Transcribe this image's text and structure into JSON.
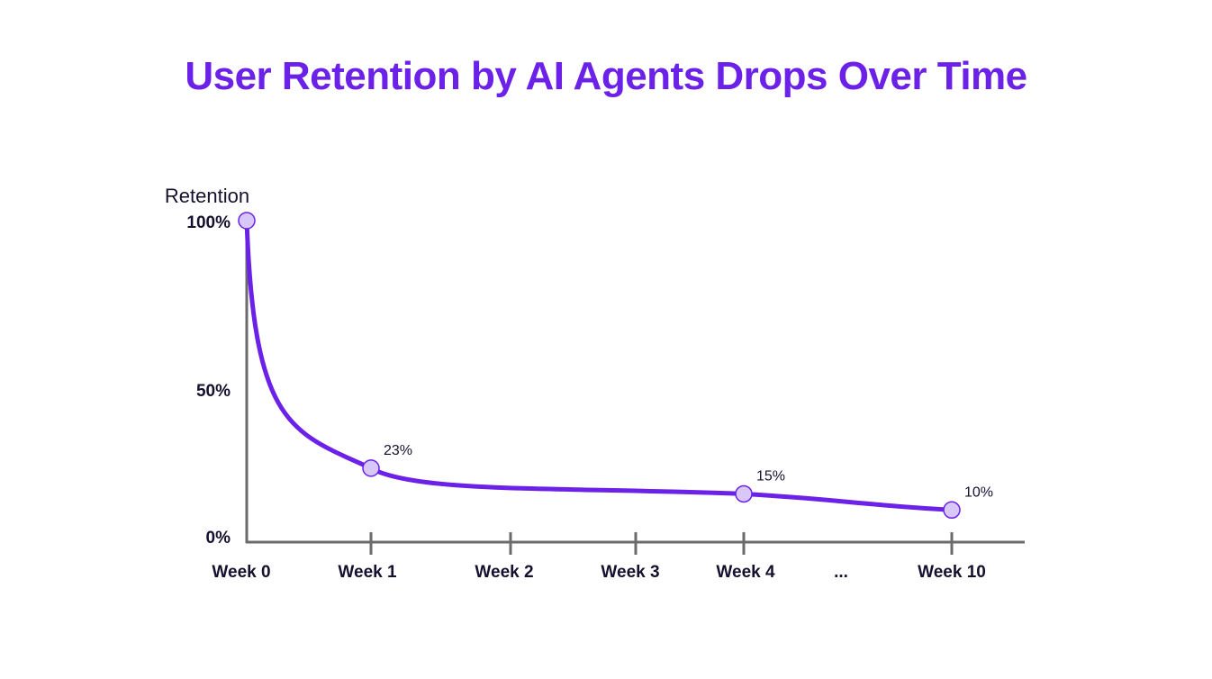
{
  "chart_data": {
    "type": "line",
    "title": "User Retention by AI Agents Drops Over Time",
    "ylabel": "Retention",
    "xlabel": "",
    "categories": [
      "Week 0",
      "Week 1",
      "Week 2",
      "Week 3",
      "Week 4",
      "...",
      "Week 10"
    ],
    "y_ticks": [
      "100%",
      "50%",
      "0%"
    ],
    "ylim": [
      0,
      100
    ],
    "points": [
      {
        "x": "Week 0",
        "y": 100,
        "label": ""
      },
      {
        "x": "Week 1",
        "y": 23,
        "label": "23%"
      },
      {
        "x": "Week 4",
        "y": 15,
        "label": "15%"
      },
      {
        "x": "Week 10",
        "y": 10,
        "label": "10%"
      }
    ],
    "grid": false,
    "colors": {
      "title": "#6b21e8",
      "line": "#6b21e8",
      "marker_fill": "#d8c8fa",
      "axis": "#6b6b6b",
      "text": "#15102e"
    }
  }
}
